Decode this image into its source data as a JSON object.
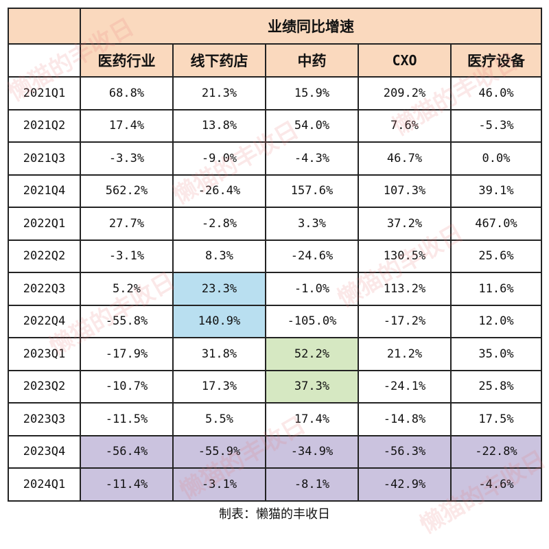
{
  "title": "业绩同比增速",
  "columns": [
    "医药行业",
    "线下药店",
    "中药",
    "CXO",
    "医疗设备"
  ],
  "rows": [
    {
      "period": "2021Q1",
      "values": [
        "68.8%",
        "21.3%",
        "15.9%",
        "209.2%",
        "46.0%"
      ]
    },
    {
      "period": "2021Q2",
      "values": [
        "17.4%",
        "13.8%",
        "54.0%",
        "7.6%",
        "-5.3%"
      ]
    },
    {
      "period": "2021Q3",
      "values": [
        "-3.3%",
        "-9.0%",
        "-4.3%",
        "46.7%",
        "0.0%"
      ]
    },
    {
      "period": "2021Q4",
      "values": [
        "562.2%",
        "-26.4%",
        "157.6%",
        "107.3%",
        "39.1%"
      ]
    },
    {
      "period": "2022Q1",
      "values": [
        "27.7%",
        "-2.8%",
        "3.3%",
        "37.2%",
        "467.0%"
      ]
    },
    {
      "period": "2022Q2",
      "values": [
        "-3.1%",
        "8.3%",
        "-24.6%",
        "130.5%",
        "25.6%"
      ]
    },
    {
      "period": "2022Q3",
      "values": [
        "5.2%",
        "23.3%",
        "-1.0%",
        "113.2%",
        "11.6%"
      ]
    },
    {
      "period": "2022Q4",
      "values": [
        "-55.8%",
        "140.9%",
        "-105.0%",
        "-17.2%",
        "12.0%"
      ]
    },
    {
      "period": "2023Q1",
      "values": [
        "-17.9%",
        "31.8%",
        "52.2%",
        "21.2%",
        "35.0%"
      ]
    },
    {
      "period": "2023Q2",
      "values": [
        "-10.7%",
        "17.3%",
        "37.3%",
        "-24.1%",
        "25.8%"
      ]
    },
    {
      "period": "2023Q3",
      "values": [
        "-11.5%",
        "5.5%",
        "17.4%",
        "-14.8%",
        "17.5%"
      ]
    },
    {
      "period": "2023Q4",
      "values": [
        "-56.4%",
        "-55.9%",
        "-34.9%",
        "-56.3%",
        "-22.8%"
      ]
    },
    {
      "period": "2024Q1",
      "values": [
        "-11.4%",
        "-3.1%",
        "-8.1%",
        "-42.9%",
        "-4.6%"
      ]
    }
  ],
  "highlight_colors": {
    "header": "#fad9be",
    "blue": "#b9dff0",
    "green": "#d6e8c2",
    "purple": "#cbc3df"
  },
  "footer": "制表：懒猫的丰收日",
  "watermark": "懒猫的丰收日"
}
